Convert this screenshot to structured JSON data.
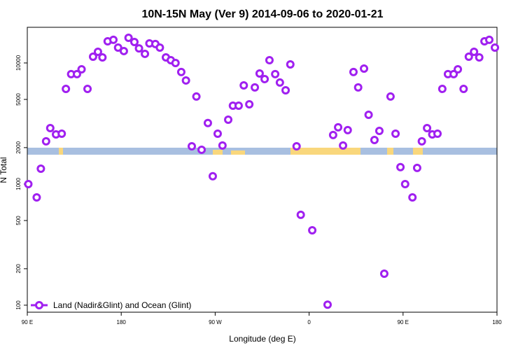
{
  "chart_data": {
    "type": "scatter",
    "title": "10N-15N May (Ver 9)   2014-09-06 to 2020-01-21",
    "x_label": "Longitude (deg E)",
    "y_label": "N Total",
    "xlim": [
      90,
      540
    ],
    "xticks": [
      {
        "value": 90,
        "label": "90 E"
      },
      {
        "value": 180,
        "label": "180"
      },
      {
        "value": 270,
        "label": "90 W"
      },
      {
        "value": 360,
        "label": "0"
      },
      {
        "value": 450,
        "label": "90 E"
      },
      {
        "value": 540,
        "label": "180"
      }
    ],
    "ylim": [
      87.5,
      19700
    ],
    "log_y": true,
    "yticks": [
      100,
      200,
      500,
      1000,
      2000,
      5000,
      10000
    ],
    "legend": "bottom-left",
    "series": [
      {
        "name": "Land (Nadir&Glint) and Ocean (Glint)",
        "color": "#a020f0",
        "x": [
          91,
          99,
          103,
          108,
          112,
          117.5,
          123,
          127,
          132,
          137.6,
          142,
          147.7,
          153,
          157.7,
          162,
          167,
          172.5,
          177,
          182.5,
          187,
          192.6,
          197,
          202.7,
          207,
          212.7,
          217,
          222.8,
          227.5,
          232,
          237.5,
          242,
          247.6,
          252,
          257,
          263,
          267.7,
          272.4,
          277,
          282.5,
          287,
          292.5,
          297.4,
          302.7,
          308,
          312.6,
          317.4,
          322,
          327.5,
          332,
          337.5,
          342,
          348,
          352,
          363,
          377.7,
          383,
          387.8,
          392.5,
          397,
          402.5,
          407,
          412.6,
          417,
          422.6,
          427.3,
          432,
          438,
          442.8,
          447.5,
          452,
          459,
          463.5,
          468,
          473,
          478,
          483,
          487.6,
          493,
          498.5,
          502.5,
          508,
          513,
          518,
          523,
          528,
          532.6,
          538
        ],
        "values": [
          1000,
          776,
          1340,
          2255,
          2900,
          2570,
          2605,
          6110,
          8090,
          8090,
          8870,
          6110,
          11270,
          12370,
          11110,
          15100,
          15520,
          13400,
          12540,
          16140,
          14900,
          13200,
          11890,
          14510,
          14330,
          13400,
          11110,
          10540,
          10000,
          8420,
          7170,
          2050,
          5280,
          1920,
          3190,
          1160,
          2605,
          2080,
          3400,
          4440,
          4440,
          6530,
          4560,
          6280,
          8180,
          7360,
          10540,
          8090,
          6890,
          5950,
          9730,
          2050,
          557,
          415,
          101,
          2540,
          2940,
          2080,
          2790,
          8420,
          6280,
          8990,
          3730,
          2310,
          2750,
          182,
          5280,
          2605,
          1380,
          1000,
          776,
          1360,
          2255,
          2900,
          2570,
          2605,
          6110,
          8090,
          8090,
          8870,
          6110,
          11270,
          12370,
          11110,
          15100,
          15520,
          13400
        ]
      }
    ]
  }
}
